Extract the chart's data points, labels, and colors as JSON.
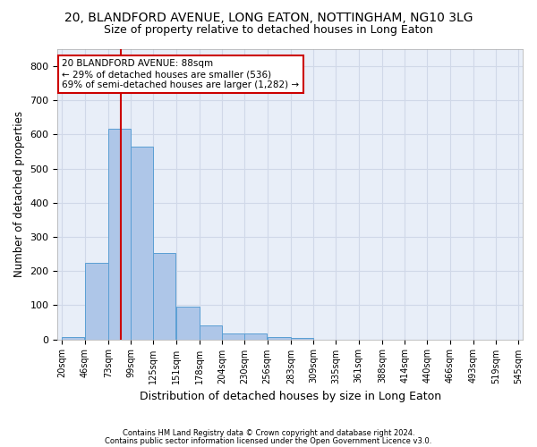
{
  "title1": "20, BLANDFORD AVENUE, LONG EATON, NOTTINGHAM, NG10 3LG",
  "title2": "Size of property relative to detached houses in Long Eaton",
  "xlabel": "Distribution of detached houses by size in Long Eaton",
  "ylabel": "Number of detached properties",
  "footnote1": "Contains HM Land Registry data © Crown copyright and database right 2024.",
  "footnote2": "Contains public sector information licensed under the Open Government Licence v3.0.",
  "bin_labels": [
    "20sqm",
    "46sqm",
    "73sqm",
    "99sqm",
    "125sqm",
    "151sqm",
    "178sqm",
    "204sqm",
    "230sqm",
    "256sqm",
    "283sqm",
    "309sqm",
    "335sqm",
    "361sqm",
    "388sqm",
    "414sqm",
    "440sqm",
    "466sqm",
    "493sqm",
    "519sqm",
    "545sqm"
  ],
  "bar_values": [
    8,
    225,
    618,
    565,
    253,
    97,
    42,
    17,
    17,
    8,
    4,
    0,
    0,
    0,
    0,
    0,
    0,
    0,
    0,
    0
  ],
  "bin_edges": [
    20,
    46,
    73,
    99,
    125,
    151,
    178,
    204,
    230,
    256,
    283,
    309,
    335,
    361,
    388,
    414,
    440,
    466,
    493,
    519,
    545
  ],
  "bar_color": "#aec6e8",
  "bar_edge_color": "#5a9fd4",
  "property_size": 88,
  "vline_color": "#cc0000",
  "annotation_line1": "20 BLANDFORD AVENUE: 88sqm",
  "annotation_line2": "← 29% of detached houses are smaller (536)",
  "annotation_line3": "69% of semi-detached houses are larger (1,282) →",
  "annotation_box_color": "#ffffff",
  "annotation_border_color": "#cc0000",
  "ylim": [
    0,
    850
  ],
  "yticks": [
    0,
    100,
    200,
    300,
    400,
    500,
    600,
    700,
    800
  ],
  "grid_color": "#d0d8e8",
  "bg_color": "#e8eef8",
  "title1_fontsize": 10,
  "title2_fontsize": 9,
  "xlabel_fontsize": 9,
  "ylabel_fontsize": 8.5,
  "annot_fontsize": 7.5
}
